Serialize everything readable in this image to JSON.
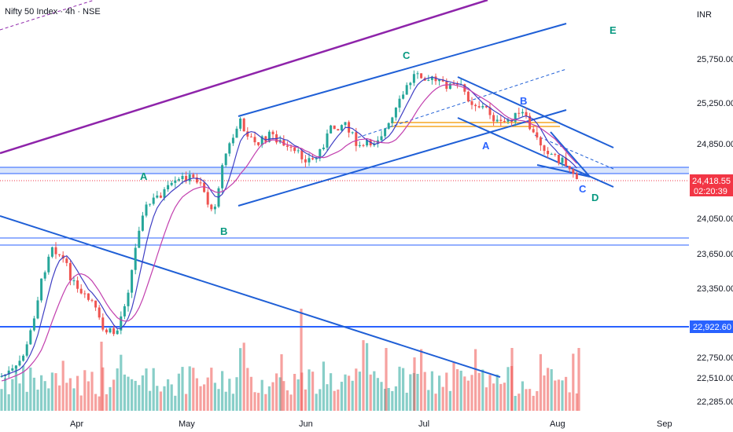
{
  "header": {
    "title": "Nifty 50 Index · 4h · NSE",
    "currency": "INR"
  },
  "chart_data": {
    "type": "candlestick",
    "y_ticks": [
      25750,
      25250,
      24850,
      24050,
      23650,
      23350,
      22750,
      22510,
      22285
    ],
    "y_tick_labels": [
      "25,750.00",
      "25,250.00",
      "24,850.00",
      "24,050.00",
      "23,650.00",
      "23,350.00",
      "22,750.00",
      "22,510.00",
      "22,285.00"
    ],
    "x_ticks": [
      "Apr",
      "May",
      "Jun",
      "Jul",
      "Aug",
      "Sep"
    ],
    "price_badges": [
      {
        "value": "24,418.55",
        "countdown": "02:20:39",
        "color": "#f23645"
      },
      {
        "value": "22,922.60",
        "color": "#2962ff"
      }
    ],
    "wave_labels": [
      {
        "text": "A",
        "color": "#089981"
      },
      {
        "text": "B",
        "color": "#089981"
      },
      {
        "text": "C",
        "color": "#089981"
      },
      {
        "text": "A",
        "color": "#2962ff"
      },
      {
        "text": "B",
        "color": "#2962ff"
      },
      {
        "text": "C",
        "color": "#2962ff"
      },
      {
        "text": "D",
        "color": "#089981"
      },
      {
        "text": "E",
        "color": "#089981"
      }
    ],
    "colors": {
      "up": "#26a69a",
      "down": "#ef5350",
      "trendline": "#1f5fd6",
      "channel": "#8e24aa",
      "ma_fast": "#3f3fc4",
      "ma_slow": "#c23fae"
    }
  }
}
